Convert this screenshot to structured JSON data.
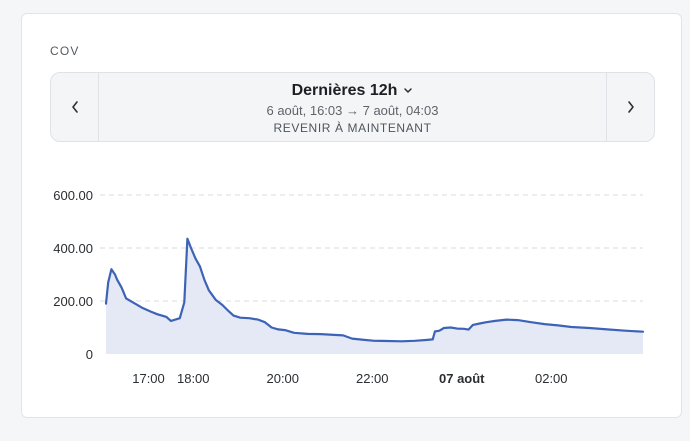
{
  "card": {
    "title": "COV"
  },
  "range": {
    "label": "Dernières 12h",
    "dates": "6 août, 16:03 → 7 août, 04:03",
    "reset_label": "REVENIR À MAINTENANT"
  },
  "icons": {
    "prev": "chevron-left-icon",
    "next": "chevron-right-icon",
    "dropdown": "chevron-down-icon"
  },
  "colors": {
    "line": "#3d63b7",
    "fill": "#e4e9f5",
    "grid": "#d8dbe0"
  },
  "chart_data": {
    "type": "area",
    "x_unit": "hours since 16:03",
    "xlim": [
      0,
      12
    ],
    "ylim": [
      0,
      600
    ],
    "y_ticks": [
      {
        "value": 0,
        "label": "0"
      },
      {
        "value": 200,
        "label": "200.00"
      },
      {
        "value": 400,
        "label": "400.00"
      },
      {
        "value": 600,
        "label": "600.00"
      }
    ],
    "x_ticks": [
      {
        "value": 0.95,
        "label": "17:00",
        "bold": false
      },
      {
        "value": 1.95,
        "label": "18:00",
        "bold": false
      },
      {
        "value": 3.95,
        "label": "20:00",
        "bold": false
      },
      {
        "value": 5.95,
        "label": "22:00",
        "bold": false
      },
      {
        "value": 7.95,
        "label": "07 août",
        "bold": true
      },
      {
        "value": 9.95,
        "label": "02:00",
        "bold": false
      }
    ],
    "grid": true,
    "series": [
      {
        "points": [
          [
            0.0,
            190
          ],
          [
            0.05,
            270
          ],
          [
            0.12,
            320
          ],
          [
            0.2,
            300
          ],
          [
            0.25,
            280
          ],
          [
            0.35,
            250
          ],
          [
            0.45,
            210
          ],
          [
            0.6,
            195
          ],
          [
            0.8,
            175
          ],
          [
            1.0,
            160
          ],
          [
            1.15,
            150
          ],
          [
            1.25,
            145
          ],
          [
            1.35,
            140
          ],
          [
            1.45,
            125
          ],
          [
            1.55,
            130
          ],
          [
            1.65,
            135
          ],
          [
            1.75,
            195
          ],
          [
            1.82,
            435
          ],
          [
            1.9,
            400
          ],
          [
            2.0,
            360
          ],
          [
            2.1,
            330
          ],
          [
            2.2,
            280
          ],
          [
            2.3,
            240
          ],
          [
            2.45,
            205
          ],
          [
            2.6,
            185
          ],
          [
            2.75,
            160
          ],
          [
            2.85,
            145
          ],
          [
            3.0,
            137
          ],
          [
            3.2,
            135
          ],
          [
            3.4,
            130
          ],
          [
            3.55,
            120
          ],
          [
            3.7,
            100
          ],
          [
            3.85,
            93
          ],
          [
            4.0,
            90
          ],
          [
            4.2,
            80
          ],
          [
            4.5,
            76
          ],
          [
            4.8,
            75
          ],
          [
            5.1,
            72
          ],
          [
            5.3,
            70
          ],
          [
            5.5,
            58
          ],
          [
            5.8,
            53
          ],
          [
            6.0,
            50
          ],
          [
            6.3,
            49
          ],
          [
            6.6,
            48
          ],
          [
            6.9,
            50
          ],
          [
            7.15,
            53
          ],
          [
            7.3,
            55
          ],
          [
            7.35,
            85
          ],
          [
            7.45,
            88
          ],
          [
            7.55,
            98
          ],
          [
            7.7,
            100
          ],
          [
            7.85,
            96
          ],
          [
            8.0,
            95
          ],
          [
            8.1,
            92
          ],
          [
            8.2,
            110
          ],
          [
            8.35,
            115
          ],
          [
            8.5,
            120
          ],
          [
            8.7,
            125
          ],
          [
            8.95,
            130
          ],
          [
            9.2,
            128
          ],
          [
            9.5,
            120
          ],
          [
            9.8,
            113
          ],
          [
            10.1,
            108
          ],
          [
            10.4,
            102
          ],
          [
            10.8,
            98
          ],
          [
            11.2,
            93
          ],
          [
            11.6,
            88
          ],
          [
            12.0,
            84
          ]
        ]
      }
    ]
  }
}
